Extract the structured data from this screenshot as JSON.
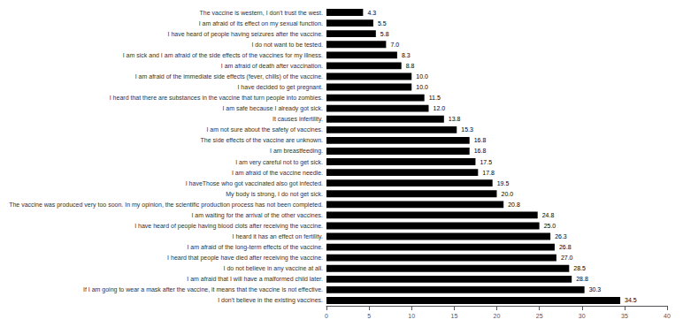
{
  "chart_data": {
    "type": "bar",
    "orientation": "horizontal",
    "categories": [
      "The vaccine is western, I don't trust the west.",
      "I am afraid of its effect on my sexual function.",
      "I have heard of people having seizures after the vaccine.",
      "I do not want to be tested.",
      "I am sick and I am afraid of the side effects of the vaccines for my illness.",
      "I am afraid of death after vaccination.",
      "I am afraid of the immediate side effects (fever, chills) of the vaccine.",
      "I have decided to get pregnant.",
      "I heard that there are substances in the vaccine that turn people into zombies.",
      "I am safe because I already got sick.",
      "It causes infertility.",
      "I am not sure about the safety of vaccines.",
      "The side effects of the vaccine are unknown.",
      "I am breastfeeding.",
      "I am very careful not to get sick.",
      "I am afraid of the vaccine needle.",
      "I haveThose who got vaccinated also got infected.",
      "My body is strong, I do not get sick.",
      "The vaccine was produced very too soon. In my opinion, the scientific production process has not been completed.",
      "I am waiting for the arrival of the other vaccines.",
      "I have heard of people having blood clots after receiving the vaccine.",
      "I heard it has an effect on fertility.",
      "I am afraid of the long-term effects of the vaccine.",
      "I heard that people have died after receiving the vaccine.",
      "I do not believe in any vaccine at all.",
      "I am afraid that I will have a malformed child later.",
      "If I am going to wear a mask after the vaccine, it means that the vaccine is not effective.",
      "I don't believe in the existing vaccines."
    ],
    "values": [
      4.3,
      5.5,
      5.8,
      7.0,
      8.3,
      8.8,
      10.0,
      10.0,
      11.5,
      12.0,
      13.8,
      15.3,
      16.8,
      16.8,
      17.5,
      17.8,
      19.5,
      20.0,
      20.8,
      24.8,
      25.0,
      26.3,
      26.8,
      27.0,
      28.5,
      28.8,
      30.3,
      34.5
    ],
    "value_labels": [
      "4.3",
      "5.5",
      "5.8",
      "7.0",
      "8.3",
      "8.8",
      "10.0",
      "10.0",
      "11.5",
      "12.0",
      "13.8",
      "15.3",
      "16.8",
      "16.8",
      "17.5",
      "17.8",
      "19.5",
      "20.0",
      "20.8",
      "24.8",
      "25.0",
      "26.3",
      "26.8",
      "27.0",
      "28.5",
      "28.8",
      "30.3",
      "34.5"
    ],
    "color": "#000000",
    "xlim": [
      0,
      40.0
    ],
    "xticks": [
      0,
      5.0,
      10.0,
      15.0,
      20.0,
      25.0,
      30.0,
      35.0,
      40.0
    ],
    "grid": false,
    "data_labels": true
  }
}
